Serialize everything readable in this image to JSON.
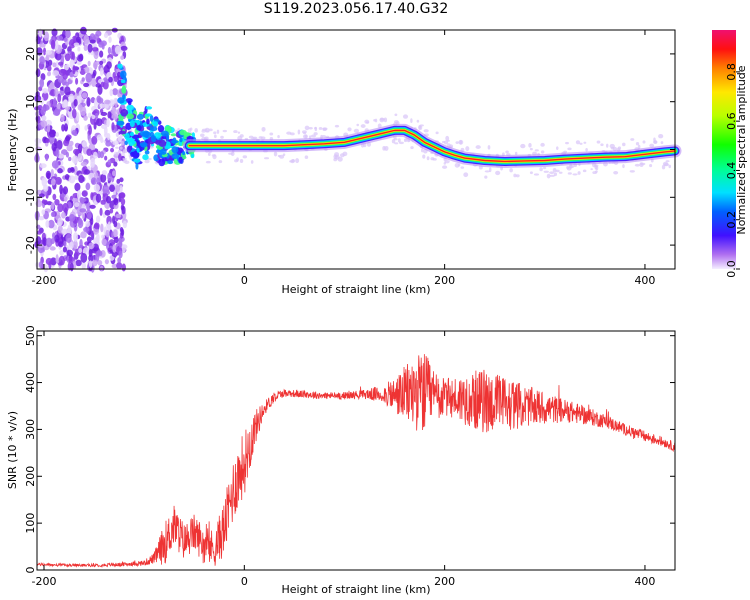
{
  "title": "S119.2023.056.17.40.G32",
  "chart_data": [
    {
      "type": "heatmap",
      "xlabel": "Height of straight line (km)",
      "ylabel": "Frequency (Hz)",
      "xlim": [
        -207,
        430
      ],
      "ylim": [
        -25,
        25
      ],
      "xticks": [
        -200,
        0,
        200,
        400
      ],
      "yticks": [
        -20,
        -10,
        0,
        10,
        20
      ],
      "colorbar": {
        "label": "Normalized spectral amplitude",
        "range": [
          0,
          0.97
        ],
        "ticks": [
          "0.0",
          "0.2",
          "0.4",
          "0.6",
          "0.8"
        ]
      },
      "ridge": {
        "x": [
          -55,
          -40,
          -20,
          0,
          20,
          40,
          60,
          80,
          100,
          110,
          120,
          130,
          140,
          150,
          160,
          170,
          180,
          190,
          200,
          210,
          220,
          240,
          260,
          280,
          300,
          320,
          340,
          360,
          380,
          400,
          420,
          430
        ],
        "freq": [
          0.8,
          0.8,
          0.8,
          0.8,
          0.8,
          0.8,
          1.0,
          1.2,
          1.5,
          2.0,
          2.5,
          3.0,
          3.5,
          4.0,
          4.0,
          3.0,
          1.5,
          0.5,
          -0.5,
          -1.2,
          -1.8,
          -2.3,
          -2.5,
          -2.4,
          -2.3,
          -2.0,
          -1.8,
          -1.6,
          -1.5,
          -1.0,
          -0.5,
          -0.3
        ]
      },
      "scatter_region": [
        -207,
        -125
      ]
    },
    {
      "type": "line",
      "xlabel": "Height of straight line (km)",
      "ylabel": "SNR (10 * v/v)",
      "xlim": [
        -207,
        430
      ],
      "ylim": [
        0,
        510
      ],
      "xticks": [
        -200,
        0,
        200,
        400
      ],
      "yticks": [
        0,
        100,
        200,
        300,
        400,
        500
      ],
      "color": "#ee3333",
      "series": [
        {
          "x": [
            -207,
            -180,
            -150,
            -120,
            -100,
            -90,
            -80,
            -70,
            -60,
            -50,
            -40,
            -30,
            -20,
            -10,
            0,
            10,
            20,
            30,
            40,
            60,
            80,
            100,
            120,
            140,
            150,
            160,
            170,
            180,
            190,
            200,
            220,
            240,
            260,
            280,
            300,
            320,
            340,
            360,
            380,
            400,
            420,
            430
          ],
          "y": [
            12,
            10,
            10,
            12,
            15,
            25,
            55,
            95,
            60,
            80,
            55,
            45,
            90,
            180,
            230,
            300,
            345,
            370,
            378,
            375,
            372,
            372,
            375,
            375,
            372,
            375,
            380,
            375,
            370,
            368,
            365,
            360,
            355,
            350,
            345,
            340,
            330,
            318,
            300,
            285,
            272,
            262
          ],
          "noise": [
            3,
            3,
            3,
            4,
            6,
            12,
            45,
            45,
            40,
            40,
            40,
            40,
            60,
            70,
            70,
            40,
            15,
            12,
            8,
            8,
            8,
            8,
            10,
            20,
            40,
            60,
            80,
            90,
            60,
            40,
            55,
            70,
            60,
            45,
            35,
            25,
            20,
            15,
            12,
            12,
            10,
            10
          ]
        }
      ]
    }
  ]
}
